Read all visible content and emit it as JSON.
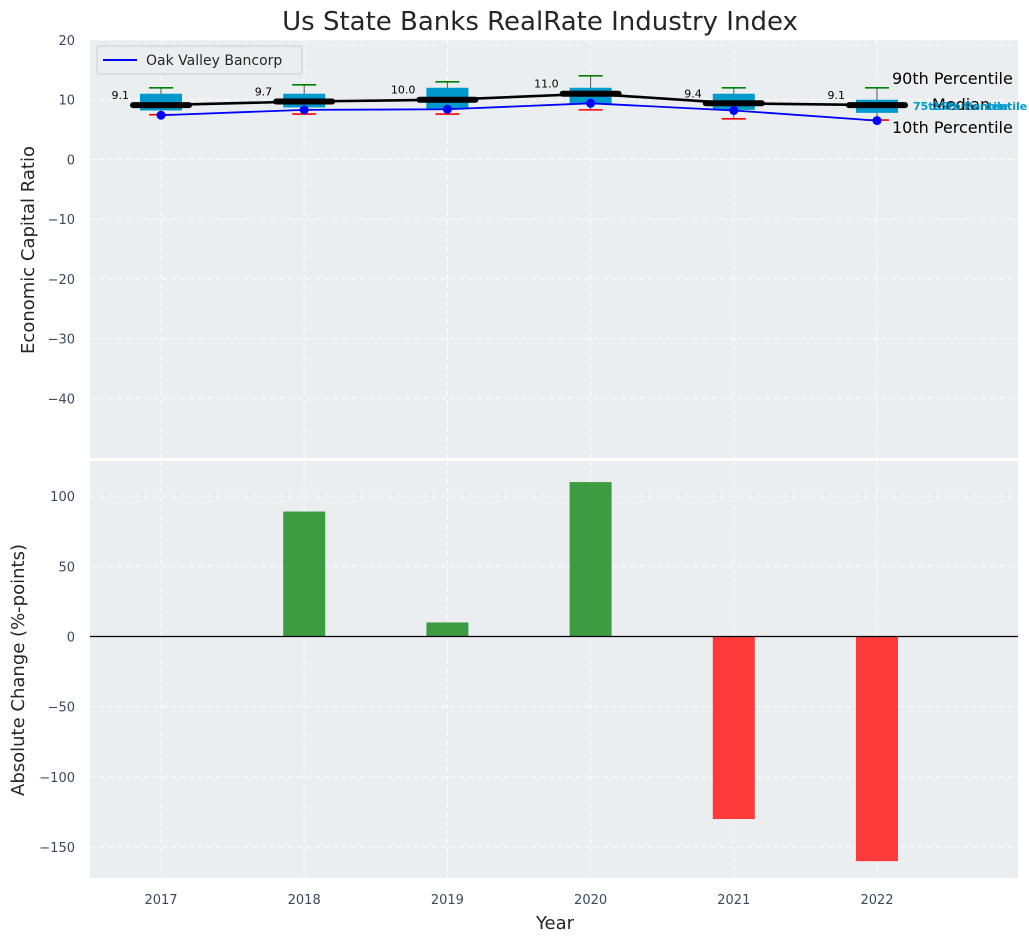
{
  "chart_data": [
    {
      "type": "box-line",
      "title": "Us State Banks RealRate Industry Index",
      "ylabel": "Economic Capital Ratio",
      "ylim": [
        -50,
        20
      ],
      "yticks": [
        20,
        10,
        0,
        -10,
        -20,
        -30,
        -40
      ],
      "categories": [
        "2017",
        "2018",
        "2019",
        "2020",
        "2021",
        "2022"
      ],
      "percentiles": {
        "p10": [
          7.5,
          7.6,
          7.6,
          8.3,
          6.8,
          6.6
        ],
        "p25": [
          8.2,
          8.7,
          8.5,
          9.3,
          8.3,
          7.8
        ],
        "median": [
          9.1,
          9.7,
          10.0,
          11.0,
          9.4,
          9.1
        ],
        "p75": [
          11.0,
          11.0,
          12.0,
          12.0,
          11.0,
          10.0
        ],
        "p90": [
          12.0,
          12.5,
          13.0,
          14.0,
          12.0,
          12.0
        ]
      },
      "median_labels": [
        "9.1",
        "9.7",
        "10.0",
        "11.0",
        "9.4",
        "9.1"
      ],
      "series": [
        {
          "name": "Oak Valley Bancorp",
          "values": [
            7.4,
            8.3,
            8.4,
            9.4,
            8.2,
            6.5
          ],
          "color": "#0000ff"
        }
      ],
      "legend": {
        "label": "Oak Valley Bancorp",
        "position": "top-left"
      },
      "annotations": {
        "p90": "90th Percentile",
        "p75": "75th Percentile",
        "median": "Median",
        "p25": "25th Percentile",
        "p10": "10th Percentile"
      },
      "colors": {
        "box": "#0099cc",
        "median": "#000000",
        "p90": "#008000",
        "p10": "#ff0000",
        "line": "#0000ff"
      }
    },
    {
      "type": "bar",
      "ylabel": "Absolute Change (%-points)",
      "xlabel": "Year",
      "ylim": [
        -172,
        125
      ],
      "yticks": [
        100,
        50,
        0,
        -50,
        -100,
        -150
      ],
      "categories": [
        "2017",
        "2018",
        "2019",
        "2020",
        "2021",
        "2022"
      ],
      "values": [
        0,
        89,
        10,
        110,
        -130,
        -160
      ],
      "colors": {
        "positive": "#2e9432",
        "negative": "#ff2a2a"
      }
    }
  ]
}
